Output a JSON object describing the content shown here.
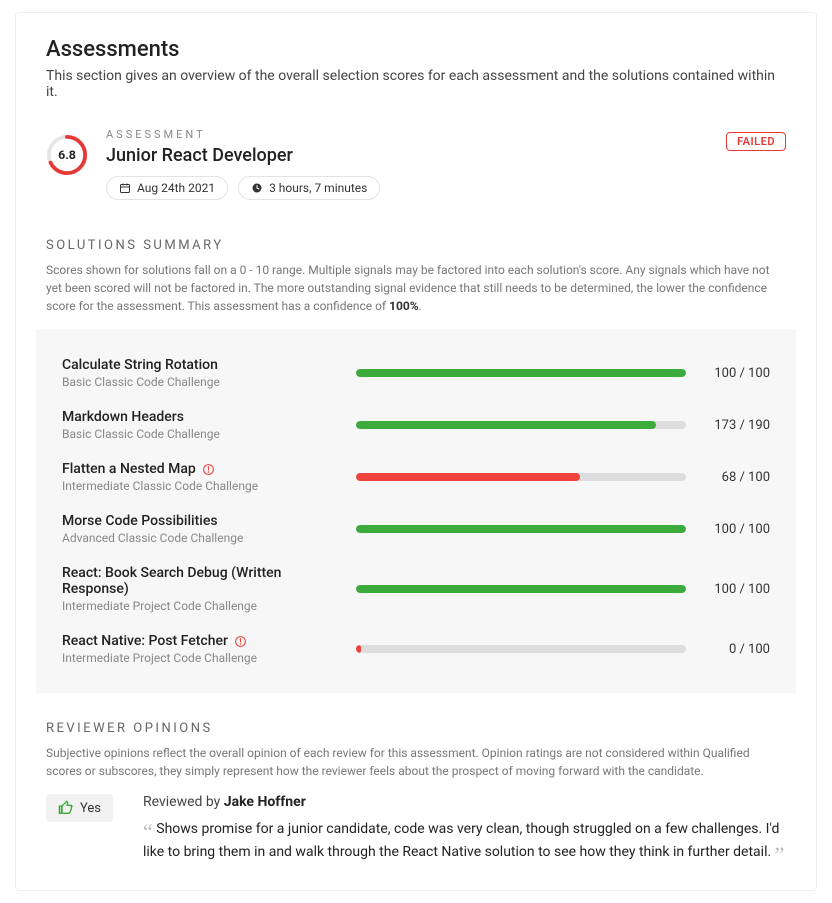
{
  "header": {
    "title": "Assessments",
    "subtitle": "This section gives an overview of the overall selection scores for each assessment and the solutions contained within it."
  },
  "assessment": {
    "label": "Assessment",
    "title": "Junior React Developer",
    "score": "6.8",
    "ring_percent": 68,
    "ring_color": "#e53935",
    "ring_track_color": "#e6e6e6",
    "status_label": "FAILED",
    "status_color": "#e53935",
    "date": "Aug 24th 2021",
    "duration": "3 hours, 7 minutes"
  },
  "solutions": {
    "heading": "SOLUTIONS SUMMARY",
    "description_prefix": "Scores shown for solutions fall on a 0 - 10 range. Multiple signals may be factored into each solution's score. Any signals which have not yet been scored will not be factored in. The more outstanding signal evidence that still needs to be determined, the lower the confidence score for the assessment. This assessment has a confidence of ",
    "confidence": "100%",
    "bar_track_color": "#dddddd",
    "green": "#3bab3b",
    "red": "#f0423c",
    "items": [
      {
        "title": "Calculate String Rotation",
        "subtitle": "Basic Classic Code Challenge",
        "score": 100,
        "max": 100,
        "percent": 100,
        "color": "#3bab3b",
        "warn": false
      },
      {
        "title": "Markdown Headers",
        "subtitle": "Basic Classic Code Challenge",
        "score": 173,
        "max": 190,
        "percent": 91,
        "color": "#3bab3b",
        "warn": false
      },
      {
        "title": "Flatten a Nested Map",
        "subtitle": "Intermediate Classic Code Challenge",
        "score": 68,
        "max": 100,
        "percent": 68,
        "color": "#f0423c",
        "warn": true
      },
      {
        "title": "Morse Code Possibilities",
        "subtitle": "Advanced Classic Code Challenge",
        "score": 100,
        "max": 100,
        "percent": 100,
        "color": "#3bab3b",
        "warn": false
      },
      {
        "title": "React: Book Search Debug (Written Response)",
        "subtitle": "Intermediate Project Code Challenge",
        "score": 100,
        "max": 100,
        "percent": 100,
        "color": "#3bab3b",
        "warn": false
      },
      {
        "title": "React Native: Post Fetcher",
        "subtitle": "Intermediate Project Code Challenge",
        "score": 0,
        "max": 100,
        "percent": 1.5,
        "color": "#f0423c",
        "warn": true
      }
    ]
  },
  "reviewer": {
    "heading": "REVIEWER OPINIONS",
    "description": "Subjective opinions reflect the overall opinion of each review for this assessment. Opinion ratings are not considered within Qualified scores or subscores, they simply represent how the reviewer feels about the prospect of moving forward with the candidate.",
    "vote_label": "Yes",
    "vote_color": "#3bab3b",
    "by_prefix": "Reviewed by ",
    "by_name": "Jake Hoffner",
    "quote": "Shows promise for a junior candidate, code was very clean, though struggled on a few challenges. I'd like to bring them in and walk through the React Native solution to see how they think in further detail."
  }
}
